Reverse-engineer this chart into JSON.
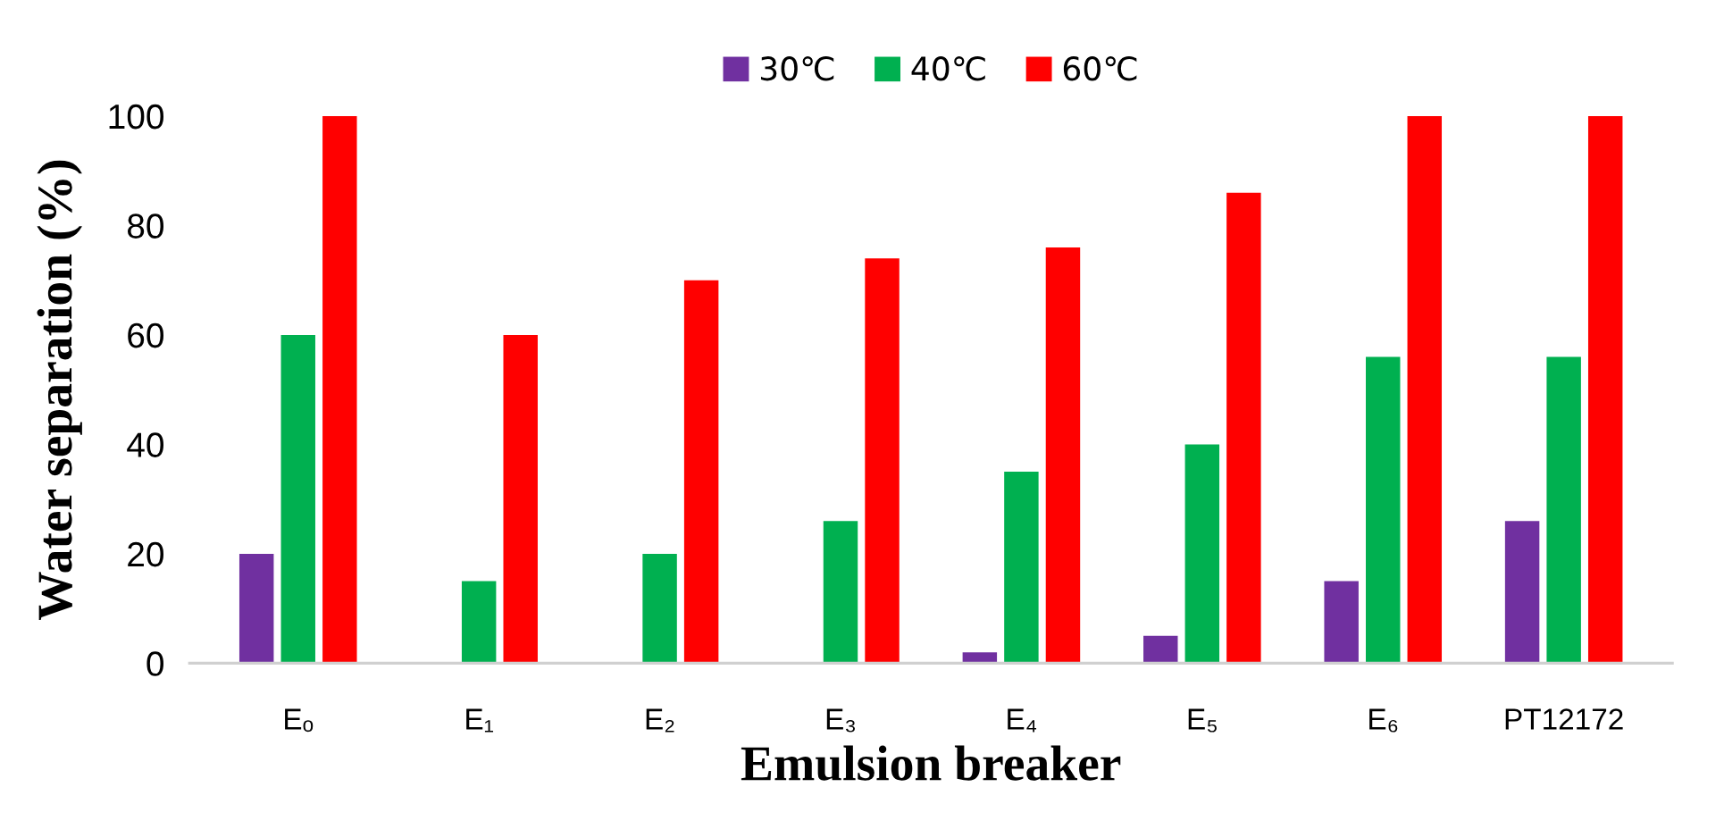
{
  "chart_data": {
    "type": "bar",
    "xlabel": "Emulsion breaker",
    "ylabel": "Water separation (%)",
    "categories": [
      "Eₒ",
      "E₁",
      "E₂",
      "E₃",
      "E₄",
      "E₅",
      "E₆",
      "PT12172"
    ],
    "series": [
      {
        "name": "30℃",
        "color": "#7030a0",
        "values": [
          20,
          0,
          0,
          0,
          2,
          5,
          15,
          26
        ]
      },
      {
        "name": "40℃",
        "color": "#00b050",
        "values": [
          60,
          15,
          20,
          26,
          35,
          40,
          56,
          56
        ]
      },
      {
        "name": "60℃",
        "color": "#ff0000",
        "values": [
          100,
          60,
          70,
          74,
          76,
          86,
          100,
          100
        ]
      }
    ],
    "ylim": [
      0,
      100
    ],
    "yticks": [
      0,
      20,
      40,
      60,
      80,
      100
    ],
    "grid": false,
    "legend": "top"
  }
}
